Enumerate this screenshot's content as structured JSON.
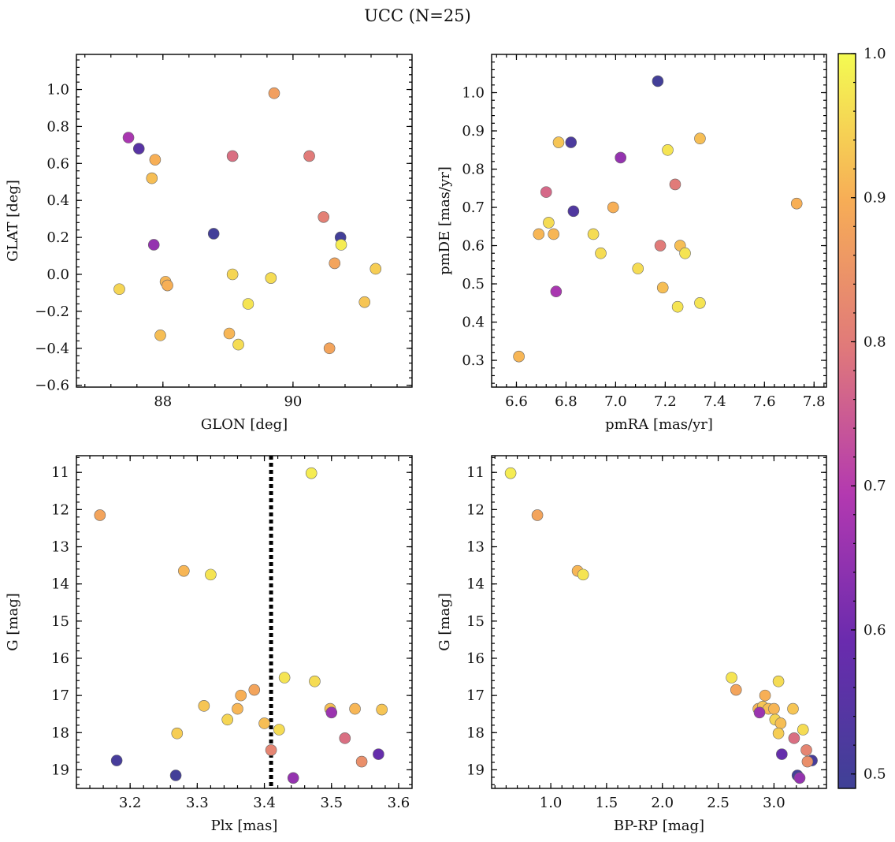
{
  "title": "UCC (N=25)",
  "colorbar": {
    "range": [
      0.49,
      1.0
    ],
    "ticks": [
      0.5,
      0.6,
      0.7,
      0.8,
      0.9,
      1.0
    ],
    "tick_labels": [
      "0.5",
      "0.6",
      "0.7",
      "0.8",
      "0.9",
      "1.0"
    ],
    "colormap": "plasma"
  },
  "chart_data": [
    {
      "type": "scatter",
      "xlabel": "GLON [deg]",
      "ylabel": "GLAT [deg]",
      "xlim": [
        86.67,
        91.83
      ],
      "ylim": [
        -0.61,
        1.19
      ],
      "xticks": [
        88,
        90
      ],
      "xtick_labels": [
        "88",
        "90"
      ],
      "yticks": [
        -0.6,
        -0.4,
        -0.2,
        0.0,
        0.2,
        0.4,
        0.6,
        0.8,
        1.0
      ],
      "ytick_labels": [
        "−0.6",
        "−0.4",
        "−0.2",
        "0.0",
        "0.2",
        "0.4",
        "0.6",
        "0.8",
        "1.0"
      ],
      "points": [
        {
          "x": 87.47,
          "y": 0.74,
          "c": 0.68
        },
        {
          "x": 87.63,
          "y": 0.68,
          "c": 0.55
        },
        {
          "x": 87.88,
          "y": 0.62,
          "c": 0.9
        },
        {
          "x": 87.83,
          "y": 0.52,
          "c": 0.92
        },
        {
          "x": 87.86,
          "y": 0.16,
          "c": 0.65
        },
        {
          "x": 87.33,
          "y": -0.08,
          "c": 0.95
        },
        {
          "x": 88.04,
          "y": -0.04,
          "c": 0.91
        },
        {
          "x": 88.07,
          "y": -0.06,
          "c": 0.9
        },
        {
          "x": 87.96,
          "y": -0.33,
          "c": 0.92
        },
        {
          "x": 88.78,
          "y": 0.22,
          "c": 0.5
        },
        {
          "x": 89.07,
          "y": 0.64,
          "c": 0.78
        },
        {
          "x": 89.07,
          "y": 0.0,
          "c": 0.95
        },
        {
          "x": 89.02,
          "y": -0.32,
          "c": 0.91
        },
        {
          "x": 89.16,
          "y": -0.38,
          "c": 0.96
        },
        {
          "x": 89.31,
          "y": -0.16,
          "c": 0.97
        },
        {
          "x": 89.66,
          "y": -0.02,
          "c": 0.96
        },
        {
          "x": 89.71,
          "y": 0.98,
          "c": 0.87
        },
        {
          "x": 90.25,
          "y": 0.64,
          "c": 0.8
        },
        {
          "x": 90.47,
          "y": 0.31,
          "c": 0.81
        },
        {
          "x": 90.64,
          "y": 0.06,
          "c": 0.88
        },
        {
          "x": 90.73,
          "y": 0.2,
          "c": 0.5
        },
        {
          "x": 90.74,
          "y": 0.16,
          "c": 0.98
        },
        {
          "x": 90.56,
          "y": -0.4,
          "c": 0.88
        },
        {
          "x": 91.1,
          "y": -0.15,
          "c": 0.93
        },
        {
          "x": 91.27,
          "y": 0.03,
          "c": 0.94
        }
      ]
    },
    {
      "type": "scatter",
      "xlabel": "pmRA [mas/yr]",
      "ylabel": "pmDE [mas/yr]",
      "xlim": [
        6.5,
        7.85
      ],
      "ylim": [
        0.23,
        1.1
      ],
      "xticks": [
        6.6,
        6.8,
        7.0,
        7.2,
        7.4,
        7.6,
        7.8
      ],
      "xtick_labels": [
        "6.6",
        "6.8",
        "7.0",
        "7.2",
        "7.4",
        "7.6",
        "7.8"
      ],
      "yticks": [
        0.3,
        0.4,
        0.5,
        0.6,
        0.7,
        0.8,
        0.9,
        1.0
      ],
      "ytick_labels": [
        "0.3",
        "0.4",
        "0.5",
        "0.6",
        "0.7",
        "0.8",
        "0.9",
        "1.0"
      ],
      "points": [
        {
          "x": 7.17,
          "y": 1.03,
          "c": 0.5
        },
        {
          "x": 6.77,
          "y": 0.87,
          "c": 0.93
        },
        {
          "x": 6.82,
          "y": 0.87,
          "c": 0.52
        },
        {
          "x": 7.34,
          "y": 0.88,
          "c": 0.92
        },
        {
          "x": 7.21,
          "y": 0.85,
          "c": 0.97
        },
        {
          "x": 7.02,
          "y": 0.83,
          "c": 0.65
        },
        {
          "x": 6.72,
          "y": 0.74,
          "c": 0.77
        },
        {
          "x": 7.24,
          "y": 0.76,
          "c": 0.8
        },
        {
          "x": 6.83,
          "y": 0.69,
          "c": 0.53
        },
        {
          "x": 6.99,
          "y": 0.7,
          "c": 0.9
        },
        {
          "x": 7.73,
          "y": 0.71,
          "c": 0.9
        },
        {
          "x": 6.73,
          "y": 0.66,
          "c": 0.96
        },
        {
          "x": 6.69,
          "y": 0.63,
          "c": 0.91
        },
        {
          "x": 6.75,
          "y": 0.63,
          "c": 0.91
        },
        {
          "x": 6.91,
          "y": 0.63,
          "c": 0.96
        },
        {
          "x": 6.94,
          "y": 0.58,
          "c": 0.96
        },
        {
          "x": 7.18,
          "y": 0.6,
          "c": 0.8
        },
        {
          "x": 7.26,
          "y": 0.6,
          "c": 0.92
        },
        {
          "x": 7.28,
          "y": 0.58,
          "c": 0.97
        },
        {
          "x": 7.09,
          "y": 0.54,
          "c": 0.96
        },
        {
          "x": 6.76,
          "y": 0.48,
          "c": 0.68
        },
        {
          "x": 7.19,
          "y": 0.49,
          "c": 0.92
        },
        {
          "x": 7.25,
          "y": 0.44,
          "c": 0.97
        },
        {
          "x": 7.34,
          "y": 0.45,
          "c": 0.97
        },
        {
          "x": 6.61,
          "y": 0.31,
          "c": 0.91
        }
      ]
    },
    {
      "type": "scatter",
      "xlabel": "Plx [mas]",
      "ylabel": "G [mag]",
      "xlim": [
        3.12,
        3.62
      ],
      "ylim": [
        19.5,
        10.55
      ],
      "y_inverted": true,
      "vline": 3.41,
      "xticks": [
        3.2,
        3.3,
        3.4,
        3.5,
        3.6
      ],
      "xtick_labels": [
        "3.2",
        "3.3",
        "3.4",
        "3.5",
        "3.6"
      ],
      "yticks": [
        11,
        12,
        13,
        14,
        15,
        16,
        17,
        18,
        19
      ],
      "ytick_labels": [
        "11",
        "12",
        "13",
        "14",
        "15",
        "16",
        "17",
        "18",
        "19"
      ],
      "points": [
        {
          "x": 3.47,
          "y": 11.02,
          "c": 0.98
        },
        {
          "x": 3.155,
          "y": 12.15,
          "c": 0.88
        },
        {
          "x": 3.28,
          "y": 13.65,
          "c": 0.91
        },
        {
          "x": 3.32,
          "y": 13.75,
          "c": 0.97
        },
        {
          "x": 3.43,
          "y": 16.52,
          "c": 0.97
        },
        {
          "x": 3.475,
          "y": 16.62,
          "c": 0.96
        },
        {
          "x": 3.385,
          "y": 16.85,
          "c": 0.88
        },
        {
          "x": 3.365,
          "y": 17.0,
          "c": 0.9
        },
        {
          "x": 3.31,
          "y": 17.28,
          "c": 0.93
        },
        {
          "x": 3.36,
          "y": 17.36,
          "c": 0.91
        },
        {
          "x": 3.498,
          "y": 17.36,
          "c": 0.92
        },
        {
          "x": 3.535,
          "y": 17.36,
          "c": 0.91
        },
        {
          "x": 3.575,
          "y": 17.38,
          "c": 0.93
        },
        {
          "x": 3.5,
          "y": 17.46,
          "c": 0.66
        },
        {
          "x": 3.345,
          "y": 17.65,
          "c": 0.95
        },
        {
          "x": 3.4,
          "y": 17.75,
          "c": 0.92
        },
        {
          "x": 3.422,
          "y": 17.92,
          "c": 0.96
        },
        {
          "x": 3.27,
          "y": 18.02,
          "c": 0.94
        },
        {
          "x": 3.52,
          "y": 18.15,
          "c": 0.78
        },
        {
          "x": 3.41,
          "y": 18.47,
          "c": 0.82
        },
        {
          "x": 3.57,
          "y": 18.58,
          "c": 0.58
        },
        {
          "x": 3.18,
          "y": 18.75,
          "c": 0.51
        },
        {
          "x": 3.545,
          "y": 18.78,
          "c": 0.84
        },
        {
          "x": 3.268,
          "y": 19.15,
          "c": 0.5
        },
        {
          "x": 3.443,
          "y": 19.22,
          "c": 0.65
        }
      ]
    },
    {
      "type": "scatter",
      "xlabel": "BP-RP [mag]",
      "ylabel": "G [mag]",
      "xlim": [
        0.47,
        3.47
      ],
      "ylim": [
        19.5,
        10.55
      ],
      "y_inverted": true,
      "xticks": [
        1.0,
        1.5,
        2.0,
        2.5,
        3.0
      ],
      "xtick_labels": [
        "1.0",
        "1.5",
        "2.0",
        "2.5",
        "3.0"
      ],
      "yticks": [
        11,
        12,
        13,
        14,
        15,
        16,
        17,
        18,
        19
      ],
      "ytick_labels": [
        "11",
        "12",
        "13",
        "14",
        "15",
        "16",
        "17",
        "18",
        "19"
      ],
      "points": [
        {
          "x": 0.64,
          "y": 11.02,
          "c": 0.98
        },
        {
          "x": 0.88,
          "y": 12.15,
          "c": 0.88
        },
        {
          "x": 1.24,
          "y": 13.65,
          "c": 0.91
        },
        {
          "x": 1.29,
          "y": 13.75,
          "c": 0.97
        },
        {
          "x": 2.62,
          "y": 16.52,
          "c": 0.97
        },
        {
          "x": 3.04,
          "y": 16.62,
          "c": 0.96
        },
        {
          "x": 2.66,
          "y": 16.85,
          "c": 0.88
        },
        {
          "x": 2.92,
          "y": 17.0,
          "c": 0.9
        },
        {
          "x": 2.86,
          "y": 17.36,
          "c": 0.91
        },
        {
          "x": 2.9,
          "y": 17.3,
          "c": 0.93
        },
        {
          "x": 2.95,
          "y": 17.36,
          "c": 0.92
        },
        {
          "x": 3.0,
          "y": 17.36,
          "c": 0.91
        },
        {
          "x": 3.17,
          "y": 17.36,
          "c": 0.93
        },
        {
          "x": 2.87,
          "y": 17.46,
          "c": 0.66
        },
        {
          "x": 3.01,
          "y": 17.65,
          "c": 0.95
        },
        {
          "x": 3.06,
          "y": 17.75,
          "c": 0.92
        },
        {
          "x": 3.26,
          "y": 17.92,
          "c": 0.96
        },
        {
          "x": 3.04,
          "y": 18.02,
          "c": 0.94
        },
        {
          "x": 3.18,
          "y": 18.15,
          "c": 0.78
        },
        {
          "x": 3.29,
          "y": 18.47,
          "c": 0.82
        },
        {
          "x": 3.07,
          "y": 18.58,
          "c": 0.58
        },
        {
          "x": 3.34,
          "y": 18.75,
          "c": 0.51
        },
        {
          "x": 3.3,
          "y": 18.78,
          "c": 0.84
        },
        {
          "x": 3.21,
          "y": 19.15,
          "c": 0.5
        },
        {
          "x": 3.23,
          "y": 19.22,
          "c": 0.65
        }
      ]
    }
  ]
}
